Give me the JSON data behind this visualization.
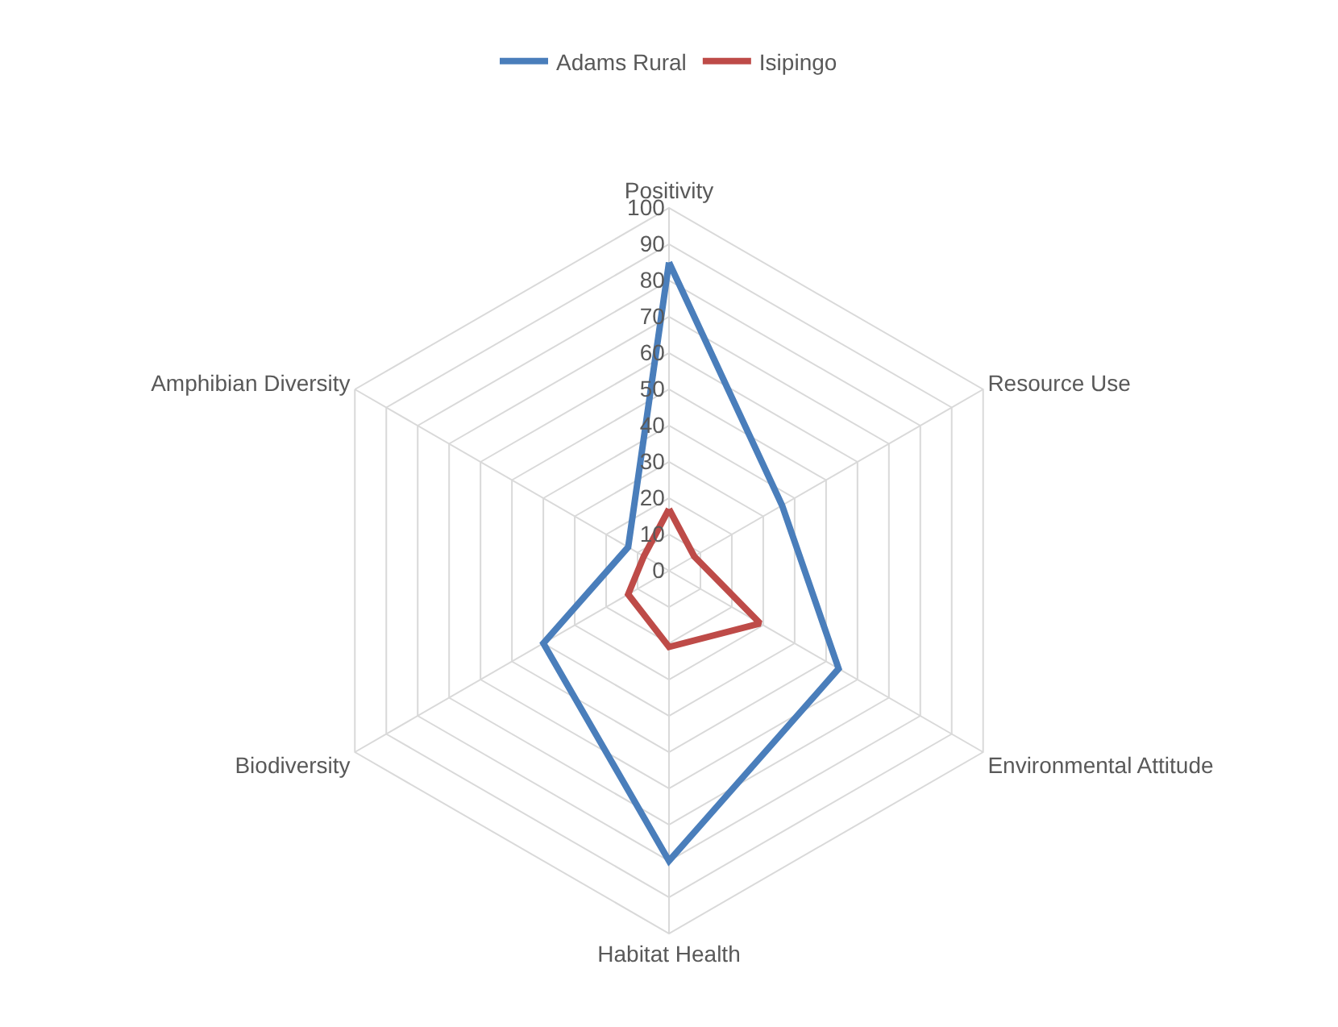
{
  "chart_data": {
    "type": "radar",
    "categories": [
      "Positivity",
      "Resource Use",
      "Environmental Attitude",
      "Habitat Health",
      "Biodiversity",
      "Amphibian Diversity"
    ],
    "series": [
      {
        "name": "Adams Rural",
        "color": "#4a7ebb",
        "values": [
          85,
          36,
          54,
          80,
          40,
          13
        ]
      },
      {
        "name": "Isipingo",
        "color": "#be4b48",
        "values": [
          17,
          8,
          29,
          21,
          13,
          8
        ]
      }
    ],
    "ylim": [
      0,
      100
    ],
    "yticks": [
      0,
      10,
      20,
      30,
      40,
      50,
      60,
      70,
      80,
      90,
      100
    ],
    "grid": true,
    "legend": "top",
    "marker": "none",
    "line_style": "solid"
  }
}
